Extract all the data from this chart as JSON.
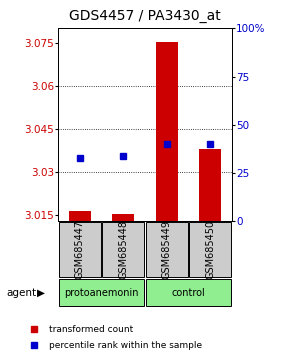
{
  "title": "GDS4457 / PA3430_at",
  "samples": [
    "GSM685447",
    "GSM685448",
    "GSM685449",
    "GSM685450"
  ],
  "groups": [
    "protoanemonin",
    "protoanemonin",
    "control",
    "control"
  ],
  "red_values": [
    3.0165,
    3.0155,
    3.0753,
    3.038
  ],
  "blue_pct": [
    33,
    34,
    40,
    40
  ],
  "ylim_left": [
    3.013,
    3.08
  ],
  "ylim_right": [
    0,
    100
  ],
  "yticks_left": [
    3.015,
    3.03,
    3.045,
    3.06,
    3.075
  ],
  "yticks_right": [
    0,
    25,
    50,
    75,
    100
  ],
  "grid_lines": [
    3.03,
    3.045,
    3.06
  ],
  "red_color": "#cc0000",
  "blue_color": "#0000cc",
  "title_fontsize": 10,
  "tick_fontsize": 7.5,
  "label_fontsize": 7,
  "group_fontsize": 7,
  "legend_fontsize": 6.5,
  "agent_fontsize": 7.5,
  "bar_width": 0.5,
  "marker_size": 4,
  "gray_box_color": "#cccccc",
  "green_color": "#90EE90"
}
